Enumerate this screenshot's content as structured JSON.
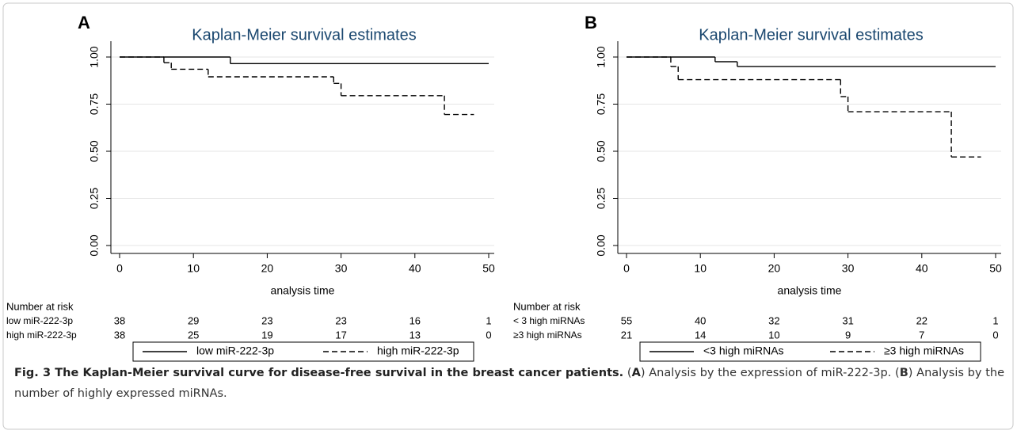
{
  "chart_data": [
    {
      "type": "step",
      "panel": "A",
      "title": "Kaplan-Meier survival estimates",
      "x_label": "analysis time",
      "xlim": [
        0,
        50
      ],
      "xticks": [
        0,
        10,
        20,
        30,
        40,
        50
      ],
      "ylim": [
        0,
        1
      ],
      "yticks": [
        {
          "value": 0,
          "label": "0.00"
        },
        {
          "value": 0.25,
          "label": "0.25"
        },
        {
          "value": 0.5,
          "label": "0.50"
        },
        {
          "value": 0.75,
          "label": "0.75"
        },
        {
          "value": 1,
          "label": "1.00"
        }
      ],
      "grid": true,
      "series": [
        {
          "name": "low miR-222-3p",
          "color": "#000000",
          "style": "solid",
          "x": [
            0,
            15,
            50
          ],
          "values": [
            1,
            0.965,
            0.965
          ]
        },
        {
          "name": "high miR-222-3p",
          "color": "#000000",
          "style": "dashed",
          "x": [
            0,
            6,
            7,
            12,
            29,
            30,
            44,
            48
          ],
          "values": [
            1,
            0.97,
            0.935,
            0.895,
            0.86,
            0.795,
            0.695,
            0.695
          ]
        }
      ],
      "risk_table": {
        "title": "Number at risk",
        "rows": [
          {
            "name": "low miR-222-3p",
            "values": [
              38,
              29,
              23,
              23,
              16,
              1
            ]
          },
          {
            "name": "high miR-222-3p",
            "values": [
              38,
              25,
              19,
              17,
              13,
              0
            ]
          }
        ]
      }
    },
    {
      "type": "step",
      "panel": "B",
      "title": "Kaplan-Meier survival estimates",
      "x_label": "analysis time",
      "xlim": [
        0,
        50
      ],
      "xticks": [
        0,
        10,
        20,
        30,
        40,
        50
      ],
      "ylim": [
        0,
        1
      ],
      "yticks": [
        {
          "value": 0,
          "label": "0.00"
        },
        {
          "value": 0.25,
          "label": "0.25"
        },
        {
          "value": 0.5,
          "label": "0.50"
        },
        {
          "value": 0.75,
          "label": "0.75"
        },
        {
          "value": 1,
          "label": "1.00"
        }
      ],
      "grid": true,
      "series": [
        {
          "name": "<3 high miRNAs",
          "color": "#000000",
          "style": "solid",
          "x": [
            0,
            12,
            15,
            50
          ],
          "values": [
            1,
            0.975,
            0.95,
            0.95
          ]
        },
        {
          "name": "≥3 high miRNAs",
          "color": "#000000",
          "style": "dashed",
          "x": [
            0,
            6,
            7,
            29,
            30,
            44,
            48
          ],
          "values": [
            1,
            0.95,
            0.88,
            0.79,
            0.71,
            0.47,
            0.47
          ]
        }
      ],
      "risk_table": {
        "title": "Number at risk",
        "rows": [
          {
            "name": "< 3 high miRNAs",
            "values": [
              55,
              40,
              32,
              31,
              22,
              1
            ]
          },
          {
            "name": "≥3 high miRNAs",
            "values": [
              21,
              14,
              10,
              9,
              7,
              0
            ]
          }
        ]
      }
    }
  ],
  "caption": {
    "title": "Fig. 3 The Kaplan-Meier survival curve for disease-free survival in the breast cancer patients.",
    "parts": [
      "(",
      "A",
      ") Analysis by the expression of miR-222-3p. (",
      "B",
      ") Analysis by the number of highly expressed miRNAs."
    ]
  }
}
